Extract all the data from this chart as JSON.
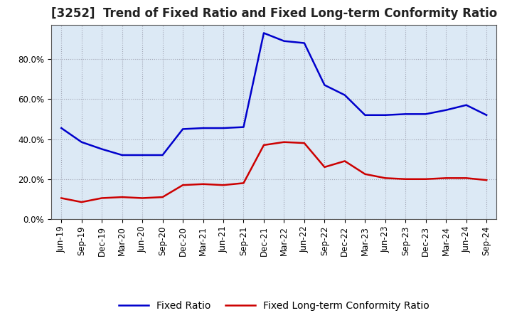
{
  "title": "[3252]  Trend of Fixed Ratio and Fixed Long-term Conformity Ratio",
  "labels": [
    "Jun-19",
    "Sep-19",
    "Dec-19",
    "Mar-20",
    "Jun-20",
    "Sep-20",
    "Dec-20",
    "Mar-21",
    "Jun-21",
    "Sep-21",
    "Dec-21",
    "Mar-22",
    "Jun-22",
    "Sep-22",
    "Dec-22",
    "Mar-23",
    "Jun-23",
    "Sep-23",
    "Dec-23",
    "Mar-24",
    "Jun-24",
    "Sep-24"
  ],
  "fixed_ratio": [
    45.5,
    38.5,
    35.0,
    32.0,
    32.0,
    32.0,
    45.0,
    45.5,
    45.5,
    46.0,
    93.0,
    89.0,
    88.0,
    67.0,
    62.0,
    52.0,
    52.0,
    52.5,
    52.5,
    54.5,
    57.0,
    52.0
  ],
  "fixed_lt_ratio": [
    10.5,
    8.5,
    10.5,
    11.0,
    10.5,
    11.0,
    17.0,
    17.5,
    17.0,
    18.0,
    37.0,
    38.5,
    38.0,
    26.0,
    29.0,
    22.5,
    20.5,
    20.0,
    20.0,
    20.5,
    20.5,
    19.5
  ],
  "fixed_ratio_color": "#0000cc",
  "fixed_lt_ratio_color": "#cc0000",
  "ylim": [
    0,
    97
  ],
  "yticks": [
    0,
    20,
    40,
    60,
    80
  ],
  "ytick_labels": [
    "0.0%",
    "20.0%",
    "40.0%",
    "60.0%",
    "80.0%"
  ],
  "legend_fixed_ratio": "Fixed Ratio",
  "legend_fixed_lt_ratio": "Fixed Long-term Conformity Ratio",
  "figure_facecolor": "#ffffff",
  "plot_facecolor": "#dce9f5",
  "grid_color": "#888899",
  "title_fontsize": 12,
  "tick_fontsize": 8.5,
  "legend_fontsize": 10,
  "line_width": 1.8
}
